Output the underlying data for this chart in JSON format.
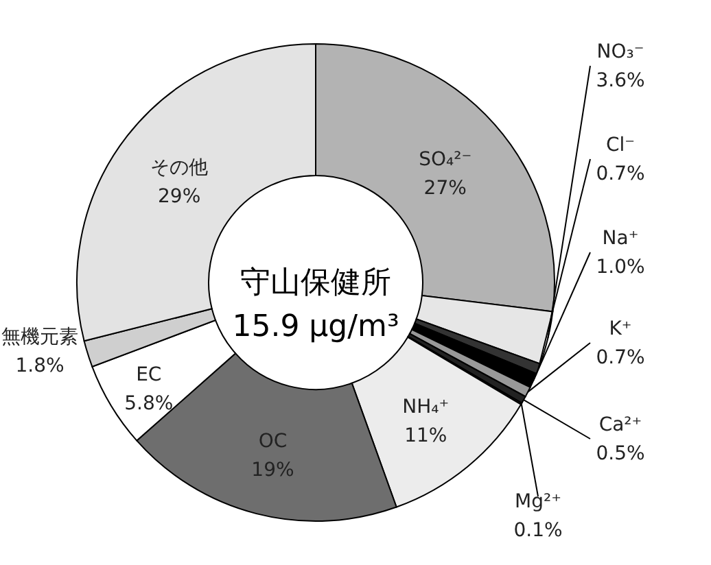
{
  "chart_data": {
    "type": "donut",
    "categories": [
      "SO₄²⁻",
      "NO₃⁻",
      "Cl⁻",
      "Na⁺",
      "K⁺",
      "Ca²⁺",
      "Mg²⁺",
      "NH₄⁺",
      "OC",
      "EC",
      "無機元素",
      "その他"
    ],
    "values": [
      27,
      3.6,
      0.7,
      1.0,
      0.7,
      0.5,
      0.1,
      11,
      19,
      5.8,
      1.8,
      29
    ],
    "value_labels": [
      "27%",
      "3.6%",
      "0.7%",
      "1.0%",
      "0.7%",
      "0.5%",
      "0.1%",
      "11%",
      "19%",
      "5.8%",
      "1.8%",
      "29%"
    ],
    "colors": [
      "#b3b3b3",
      "#e6e6e6",
      "#333333",
      "#000000",
      "#999999",
      "#222222",
      "#666666",
      "#ececec",
      "#6e6e6e",
      "#ffffff",
      "#cfcfcf",
      "#e3e3e3"
    ],
    "annotations": [
      "守山保健所",
      "15.9 μg/m³"
    ]
  }
}
